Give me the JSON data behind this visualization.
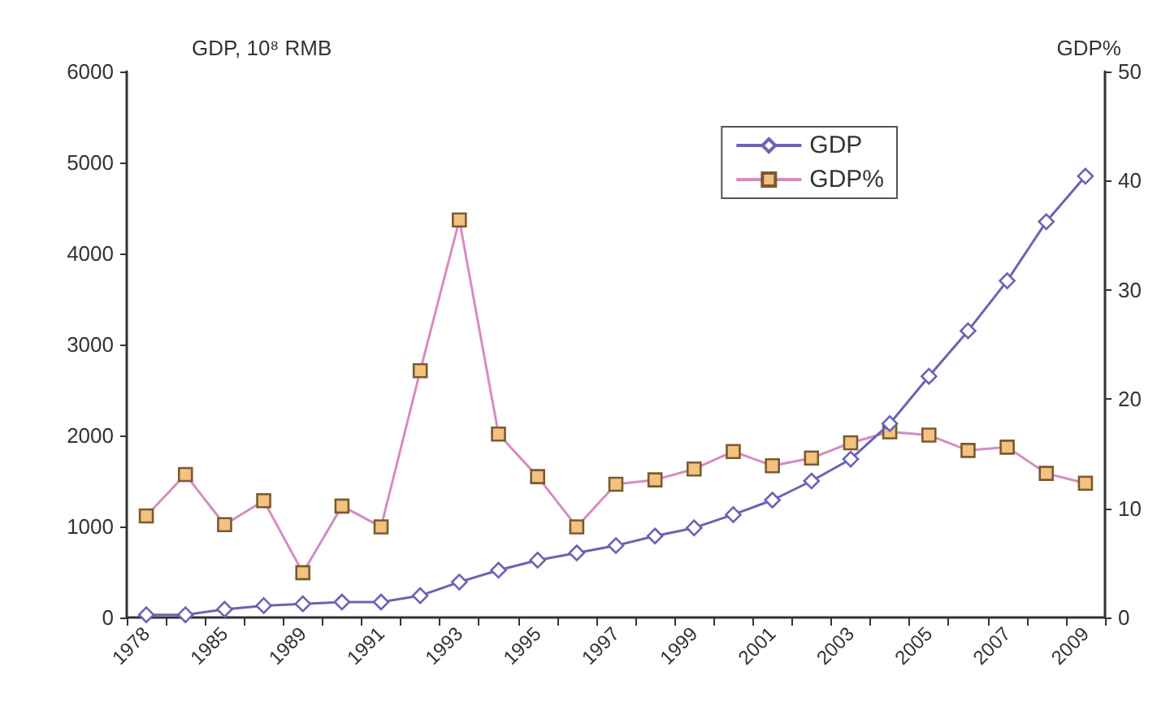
{
  "chart_data": {
    "type": "line",
    "ylabel": "GDP, 10⁸ RMB",
    "y2label": "GDP%",
    "categories": [
      "1978",
      null,
      "1985",
      null,
      "1989",
      null,
      "1991",
      null,
      "1993",
      null,
      "1995",
      null,
      "1997",
      null,
      "1999",
      null,
      "2001",
      null,
      "2003",
      null,
      "2005",
      null,
      "2007",
      null,
      "2009"
    ],
    "series": [
      {
        "name": "GDP",
        "color": "#6a64b4",
        "marker": "diamond",
        "values": [
          30,
          30,
          90,
          130,
          150,
          170,
          170,
          240,
          390,
          520,
          630,
          710,
          790,
          895,
          985,
          1130,
          1290,
          1500,
          1740,
          2130,
          2650,
          3150,
          3700,
          4350,
          4850
        ]
      },
      {
        "name": "GDP%",
        "color": "#d68cc0",
        "marker": "square",
        "axis": "y2",
        "values": [
          9.3,
          13.1,
          8.5,
          10.7,
          4.1,
          10.2,
          8.3,
          22.6,
          36.4,
          16.8,
          12.9,
          8.3,
          12.2,
          12.6,
          13.6,
          15.2,
          13.9,
          14.6,
          16.0,
          17.0,
          16.7,
          15.3,
          15.6,
          13.2,
          12.3
        ]
      }
    ],
    "ylim": [
      0,
      6000
    ],
    "yticks": [
      0,
      1000,
      2000,
      3000,
      4000,
      5000,
      6000
    ],
    "y2lim": [
      0,
      50
    ],
    "y2ticks": [
      0,
      10,
      20,
      30,
      40,
      50
    ],
    "grid": false,
    "legend": "top right"
  }
}
